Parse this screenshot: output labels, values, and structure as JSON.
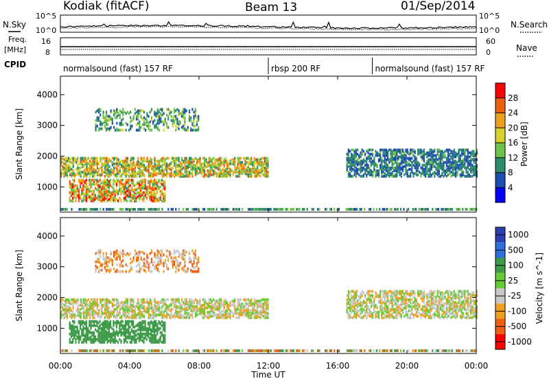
{
  "header": {
    "station": "Kodiak (fitACF)",
    "beam": "Beam 13",
    "date": "01/Sep/2014"
  },
  "summary": {
    "left_label": "N.Sky",
    "right_label": "N.Search",
    "ticks_left": [
      "10^5",
      "10^0"
    ],
    "ticks_right": [
      "10^5",
      "10^0"
    ]
  },
  "freq": {
    "left_label_line1": "Freq.",
    "left_label_line2": "[MHz]",
    "right_label": "Nave",
    "ticks_left": [
      "16",
      "8"
    ],
    "ticks_right": [
      "60",
      "0"
    ]
  },
  "cpid": {
    "label": "CPID",
    "segments": [
      {
        "name": "normalsound (fast) 157 RF",
        "start_h": 0,
        "end_h": 12
      },
      {
        "name": "rbsp 200 RF",
        "start_h": 12,
        "end_h": 18
      },
      {
        "name": "normalsound (fast) 157 RF",
        "start_h": 18,
        "end_h": 24
      }
    ]
  },
  "time_axis": {
    "label": "Time UT",
    "ticks": [
      "00:00",
      "04:00",
      "08:00",
      "12:00",
      "16:00",
      "20:00",
      "00:00"
    ]
  },
  "colors": {
    "background": "#ffffff",
    "ground_scatter": "#c8c8c8"
  },
  "chart_data": [
    {
      "type": "heatmap",
      "name": "Power",
      "ylabel": "Slant Range [km]",
      "ylim": [
        180,
        4600
      ],
      "yticks": [
        1000,
        2000,
        3000,
        4000
      ],
      "xlim_hours": [
        0,
        24
      ],
      "colorbar": {
        "label": "Power [dB]",
        "range": [
          0,
          32
        ],
        "ticks": [
          4,
          8,
          12,
          16,
          20,
          24,
          28
        ],
        "colors": [
          "#0000ff",
          "#1e4db0",
          "#2e8b6a",
          "#6cc24a",
          "#d6d22a",
          "#f0a020",
          "#ee6010",
          "#ff0000"
        ]
      },
      "features": [
        {
          "desc": "main F-region echo band",
          "t_hours": [
            0,
            12
          ],
          "range_km": [
            1300,
            1900
          ],
          "power_db_peak": 24
        },
        {
          "desc": "near-range E-region echoes",
          "t_hours": [
            0.5,
            6
          ],
          "range_km": [
            500,
            1200
          ],
          "power_db_peak": 28
        },
        {
          "desc": "far-range scatter",
          "t_hours": [
            2,
            8
          ],
          "range_km": [
            2800,
            3500
          ],
          "power_db_peak": 16
        },
        {
          "desc": "evening F-region band",
          "t_hours": [
            16.5,
            24
          ],
          "range_km": [
            1300,
            2200
          ],
          "power_db_peak": 12
        }
      ]
    },
    {
      "type": "heatmap",
      "name": "Velocity",
      "ylabel": "Slant Range [km]",
      "ylim": [
        180,
        4600
      ],
      "yticks": [
        1000,
        2000,
        3000,
        4000
      ],
      "xlim_hours": [
        0,
        24
      ],
      "colorbar": {
        "label": "Velocity [m s^-1]",
        "range": [
          -1200,
          1200
        ],
        "ticks": [
          1000,
          500,
          100,
          25,
          -25,
          -100,
          -500,
          -1000
        ],
        "colors": [
          "#2a3fb0",
          "#2a6ee0",
          "#3c9a48",
          "#66cc33",
          "#c8c8c8",
          "#f0a020",
          "#ee6010",
          "#ff0000"
        ]
      },
      "features": [
        {
          "desc": "ground scatter band (grey)",
          "t_hours": [
            0,
            12
          ],
          "range_km": [
            1300,
            1900
          ],
          "velocity": 0
        },
        {
          "desc": "near-range positive velocity echoes",
          "t_hours": [
            0.5,
            6
          ],
          "range_km": [
            500,
            1200
          ],
          "velocity": 150
        },
        {
          "desc": "evening ground scatter",
          "t_hours": [
            16.5,
            24
          ],
          "range_km": [
            1300,
            2200
          ],
          "velocity": 0
        }
      ]
    }
  ]
}
